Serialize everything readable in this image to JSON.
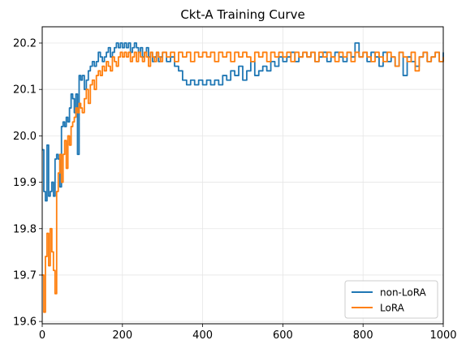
{
  "chart_data": {
    "type": "line",
    "title": "Ckt-A Training Curve",
    "xlabel": "",
    "ylabel": "",
    "xlim": [
      0,
      1000
    ],
    "ylim": [
      19.595,
      20.235
    ],
    "xticks": [
      0,
      200,
      400,
      600,
      800,
      1000
    ],
    "yticks": [
      19.6,
      19.7,
      19.8,
      19.9,
      20.0,
      20.1,
      20.2
    ],
    "grid": true,
    "legend_position": "lower-right",
    "series": [
      {
        "name": "non-LoRA",
        "color": "#1f77b4",
        "x": [
          0,
          4,
          8,
          12,
          16,
          20,
          24,
          28,
          32,
          36,
          40,
          44,
          48,
          52,
          56,
          60,
          64,
          68,
          72,
          76,
          80,
          84,
          88,
          92,
          96,
          100,
          105,
          110,
          115,
          120,
          125,
          130,
          135,
          140,
          145,
          150,
          155,
          160,
          165,
          170,
          175,
          180,
          185,
          190,
          195,
          200,
          205,
          210,
          215,
          220,
          225,
          230,
          235,
          240,
          245,
          250,
          255,
          260,
          265,
          270,
          275,
          280,
          285,
          290,
          295,
          300,
          310,
          320,
          330,
          340,
          350,
          360,
          370,
          380,
          390,
          400,
          410,
          420,
          430,
          440,
          450,
          460,
          470,
          480,
          490,
          500,
          510,
          520,
          530,
          540,
          550,
          560,
          570,
          580,
          590,
          600,
          610,
          620,
          630,
          640,
          650,
          660,
          670,
          680,
          690,
          700,
          710,
          720,
          730,
          740,
          750,
          760,
          770,
          780,
          790,
          800,
          810,
          820,
          830,
          840,
          850,
          860,
          870,
          880,
          890,
          900,
          910,
          920,
          930,
          940,
          950,
          960,
          970,
          980,
          990,
          1000
        ],
        "y": [
          19.97,
          19.88,
          19.86,
          19.98,
          19.87,
          19.88,
          19.9,
          19.87,
          19.95,
          19.96,
          19.95,
          19.89,
          20.02,
          20.03,
          20.02,
          20.04,
          20.03,
          20.06,
          20.09,
          20.08,
          20.05,
          20.09,
          19.96,
          20.13,
          20.12,
          20.13,
          20.1,
          20.12,
          20.14,
          20.15,
          20.16,
          20.15,
          20.16,
          20.18,
          20.17,
          20.16,
          20.17,
          20.18,
          20.19,
          20.17,
          20.18,
          20.19,
          20.2,
          20.19,
          20.2,
          20.19,
          20.2,
          20.19,
          20.2,
          20.18,
          20.19,
          20.2,
          20.19,
          20.18,
          20.19,
          20.17,
          20.18,
          20.19,
          20.17,
          20.18,
          20.16,
          20.17,
          20.18,
          20.16,
          20.17,
          20.18,
          20.16,
          20.17,
          20.15,
          20.14,
          20.12,
          20.11,
          20.12,
          20.11,
          20.12,
          20.11,
          20.12,
          20.11,
          20.12,
          20.11,
          20.13,
          20.12,
          20.14,
          20.13,
          20.15,
          20.12,
          20.14,
          20.16,
          20.13,
          20.14,
          20.15,
          20.14,
          20.16,
          20.15,
          20.17,
          20.16,
          20.17,
          20.18,
          20.16,
          20.17,
          20.18,
          20.17,
          20.18,
          20.16,
          20.17,
          20.18,
          20.16,
          20.17,
          20.18,
          20.17,
          20.16,
          20.18,
          20.17,
          20.2,
          20.17,
          20.18,
          20.16,
          20.18,
          20.17,
          20.15,
          20.18,
          20.16,
          20.17,
          20.15,
          20.18,
          20.13,
          20.17,
          20.16,
          20.15,
          20.17,
          20.18,
          20.16,
          20.17,
          20.18,
          20.16,
          20.18
        ]
      },
      {
        "name": "LoRA",
        "color": "#ff7f0e",
        "x": [
          0,
          4,
          8,
          12,
          16,
          20,
          24,
          28,
          32,
          36,
          40,
          44,
          48,
          52,
          56,
          60,
          64,
          68,
          72,
          76,
          80,
          84,
          88,
          92,
          96,
          100,
          105,
          110,
          115,
          120,
          125,
          130,
          135,
          140,
          145,
          150,
          155,
          160,
          165,
          170,
          175,
          180,
          185,
          190,
          195,
          200,
          205,
          210,
          215,
          220,
          225,
          230,
          235,
          240,
          245,
          250,
          255,
          260,
          265,
          270,
          275,
          280,
          285,
          290,
          295,
          300,
          310,
          320,
          330,
          340,
          350,
          360,
          370,
          380,
          390,
          400,
          410,
          420,
          430,
          440,
          450,
          460,
          470,
          480,
          490,
          500,
          510,
          520,
          530,
          540,
          550,
          560,
          570,
          580,
          590,
          600,
          610,
          620,
          630,
          640,
          650,
          660,
          670,
          680,
          690,
          700,
          710,
          720,
          730,
          740,
          750,
          760,
          770,
          780,
          790,
          800,
          810,
          820,
          830,
          840,
          850,
          860,
          870,
          880,
          890,
          900,
          910,
          920,
          930,
          940,
          950,
          960,
          970,
          980,
          990,
          1000
        ],
        "y": [
          19.7,
          19.62,
          19.74,
          19.79,
          19.72,
          19.8,
          19.75,
          19.71,
          19.66,
          19.88,
          19.92,
          19.96,
          19.9,
          19.96,
          19.99,
          19.93,
          20.0,
          19.98,
          20.02,
          20.03,
          20.04,
          20.06,
          20.05,
          20.07,
          20.06,
          20.05,
          20.08,
          20.1,
          20.07,
          20.11,
          20.12,
          20.1,
          20.13,
          20.14,
          20.13,
          20.15,
          20.14,
          20.16,
          20.15,
          20.14,
          20.17,
          20.16,
          20.15,
          20.17,
          20.18,
          20.17,
          20.18,
          20.17,
          20.18,
          20.16,
          20.17,
          20.18,
          20.16,
          20.18,
          20.17,
          20.16,
          20.18,
          20.17,
          20.15,
          20.18,
          20.17,
          20.16,
          20.18,
          20.17,
          20.16,
          20.18,
          20.17,
          20.18,
          20.16,
          20.18,
          20.17,
          20.18,
          20.16,
          20.18,
          20.17,
          20.18,
          20.17,
          20.18,
          20.16,
          20.18,
          20.17,
          20.18,
          20.16,
          20.18,
          20.17,
          20.18,
          20.17,
          20.16,
          20.18,
          20.17,
          20.18,
          20.16,
          20.18,
          20.17,
          20.18,
          20.17,
          20.18,
          20.16,
          20.18,
          20.17,
          20.18,
          20.17,
          20.18,
          20.16,
          20.18,
          20.17,
          20.18,
          20.17,
          20.16,
          20.18,
          20.17,
          20.18,
          20.16,
          20.18,
          20.17,
          20.18,
          20.17,
          20.16,
          20.18,
          20.17,
          20.16,
          20.18,
          20.17,
          20.15,
          20.18,
          20.17,
          20.16,
          20.18,
          20.14,
          20.17,
          20.18,
          20.16,
          20.17,
          20.18,
          20.16,
          20.17
        ]
      }
    ]
  }
}
